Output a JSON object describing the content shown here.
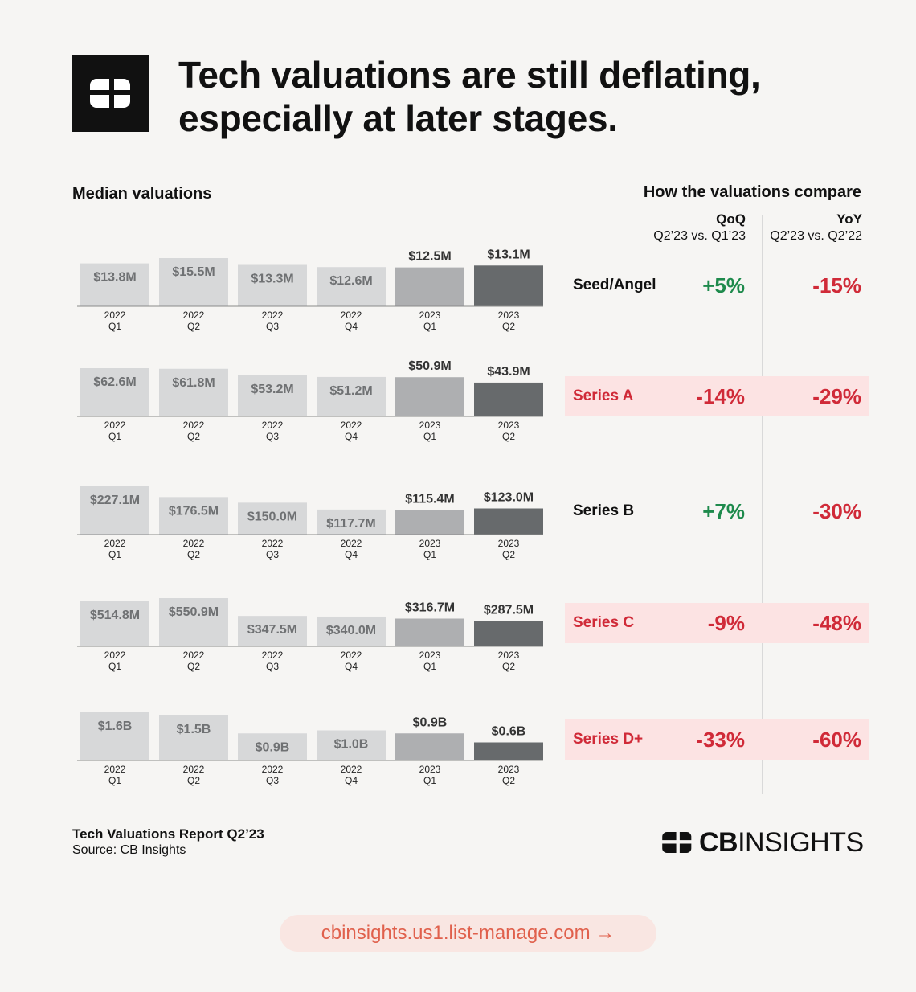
{
  "header": {
    "title_line1": "Tech valuations are still deflating,",
    "title_line2": "especially at later stages."
  },
  "left_heading": "Median valuations",
  "compare": {
    "heading": "How the valuations compare",
    "qoq_title": "QoQ",
    "qoq_sub": "Q2’23 vs. Q1’23",
    "yoy_title": "YoY",
    "yoy_sub": "Q2’23 vs. Q2’22",
    "rows": [
      {
        "stage": "Seed/Angel",
        "qoq": "+5%",
        "yoy": "-15%"
      },
      {
        "stage": "Series A",
        "qoq": "-14%",
        "yoy": "-29%"
      },
      {
        "stage": "Series B",
        "qoq": "+7%",
        "yoy": "-30%"
      },
      {
        "stage": "Series C",
        "qoq": "-9%",
        "yoy": "-48%"
      },
      {
        "stage": "Series D+",
        "qoq": "-33%",
        "yoy": "-60%"
      }
    ]
  },
  "colors": {
    "bar_light": "#d7d8d9",
    "bar_mid": "#aeafb1",
    "bar_dark": "#676a6c",
    "positive": "#1e8a4c",
    "negative": "#d02a38",
    "highlight_band": "#fce3e3"
  },
  "chart_data": [
    {
      "type": "bar",
      "categories": [
        "2022 Q1",
        "2022 Q2",
        "2022 Q3",
        "2022 Q4",
        "2023 Q1",
        "2023 Q2"
      ],
      "values": [
        13.8,
        15.5,
        13.3,
        12.6,
        12.5,
        13.1
      ],
      "labels": [
        "$13.8M",
        "$15.5M",
        "$13.3M",
        "$12.6M",
        "$12.5M",
        "$13.1M"
      ],
      "unit": "M"
    },
    {
      "type": "bar",
      "categories": [
        "2022 Q1",
        "2022 Q2",
        "2022 Q3",
        "2022 Q4",
        "2023 Q1",
        "2023 Q2"
      ],
      "values": [
        62.6,
        61.8,
        53.2,
        51.2,
        50.9,
        43.9
      ],
      "labels": [
        "$62.6M",
        "$61.8M",
        "$53.2M",
        "$51.2M",
        "$50.9M",
        "$43.9M"
      ],
      "unit": "M"
    },
    {
      "type": "bar",
      "categories": [
        "2022 Q1",
        "2022 Q2",
        "2022 Q3",
        "2022 Q4",
        "2023 Q1",
        "2023 Q2"
      ],
      "values": [
        227.1,
        176.5,
        150.0,
        117.7,
        115.4,
        123.0
      ],
      "labels": [
        "$227.1M",
        "$176.5M",
        "$150.0M",
        "$117.7M",
        "$115.4M",
        "$123.0M"
      ],
      "unit": "M"
    },
    {
      "type": "bar",
      "categories": [
        "2022 Q1",
        "2022 Q2",
        "2022 Q3",
        "2022 Q4",
        "2023 Q1",
        "2023 Q2"
      ],
      "values": [
        514.8,
        550.9,
        347.5,
        340.0,
        316.7,
        287.5
      ],
      "labels": [
        "$514.8M",
        "$550.9M",
        "$347.5M",
        "$340.0M",
        "$316.7M",
        "$287.5M"
      ],
      "unit": "M"
    },
    {
      "type": "bar",
      "categories": [
        "2022 Q1",
        "2022 Q2",
        "2022 Q3",
        "2022 Q4",
        "2023 Q1",
        "2023 Q2"
      ],
      "values": [
        1.6,
        1.5,
        0.9,
        1.0,
        0.9,
        0.6
      ],
      "labels": [
        "$1.6B",
        "$1.5B",
        "$0.9B",
        "$1.0B",
        "$0.9B",
        "$0.6B"
      ],
      "unit": "B"
    }
  ],
  "footer": {
    "report": "Tech Valuations Report Q2’23",
    "source": "Source: CB Insights",
    "brand_bold": "CB",
    "brand_rest": "INSIGHTS"
  },
  "link": {
    "text": "cbinsights.us1.list-manage.com →"
  }
}
